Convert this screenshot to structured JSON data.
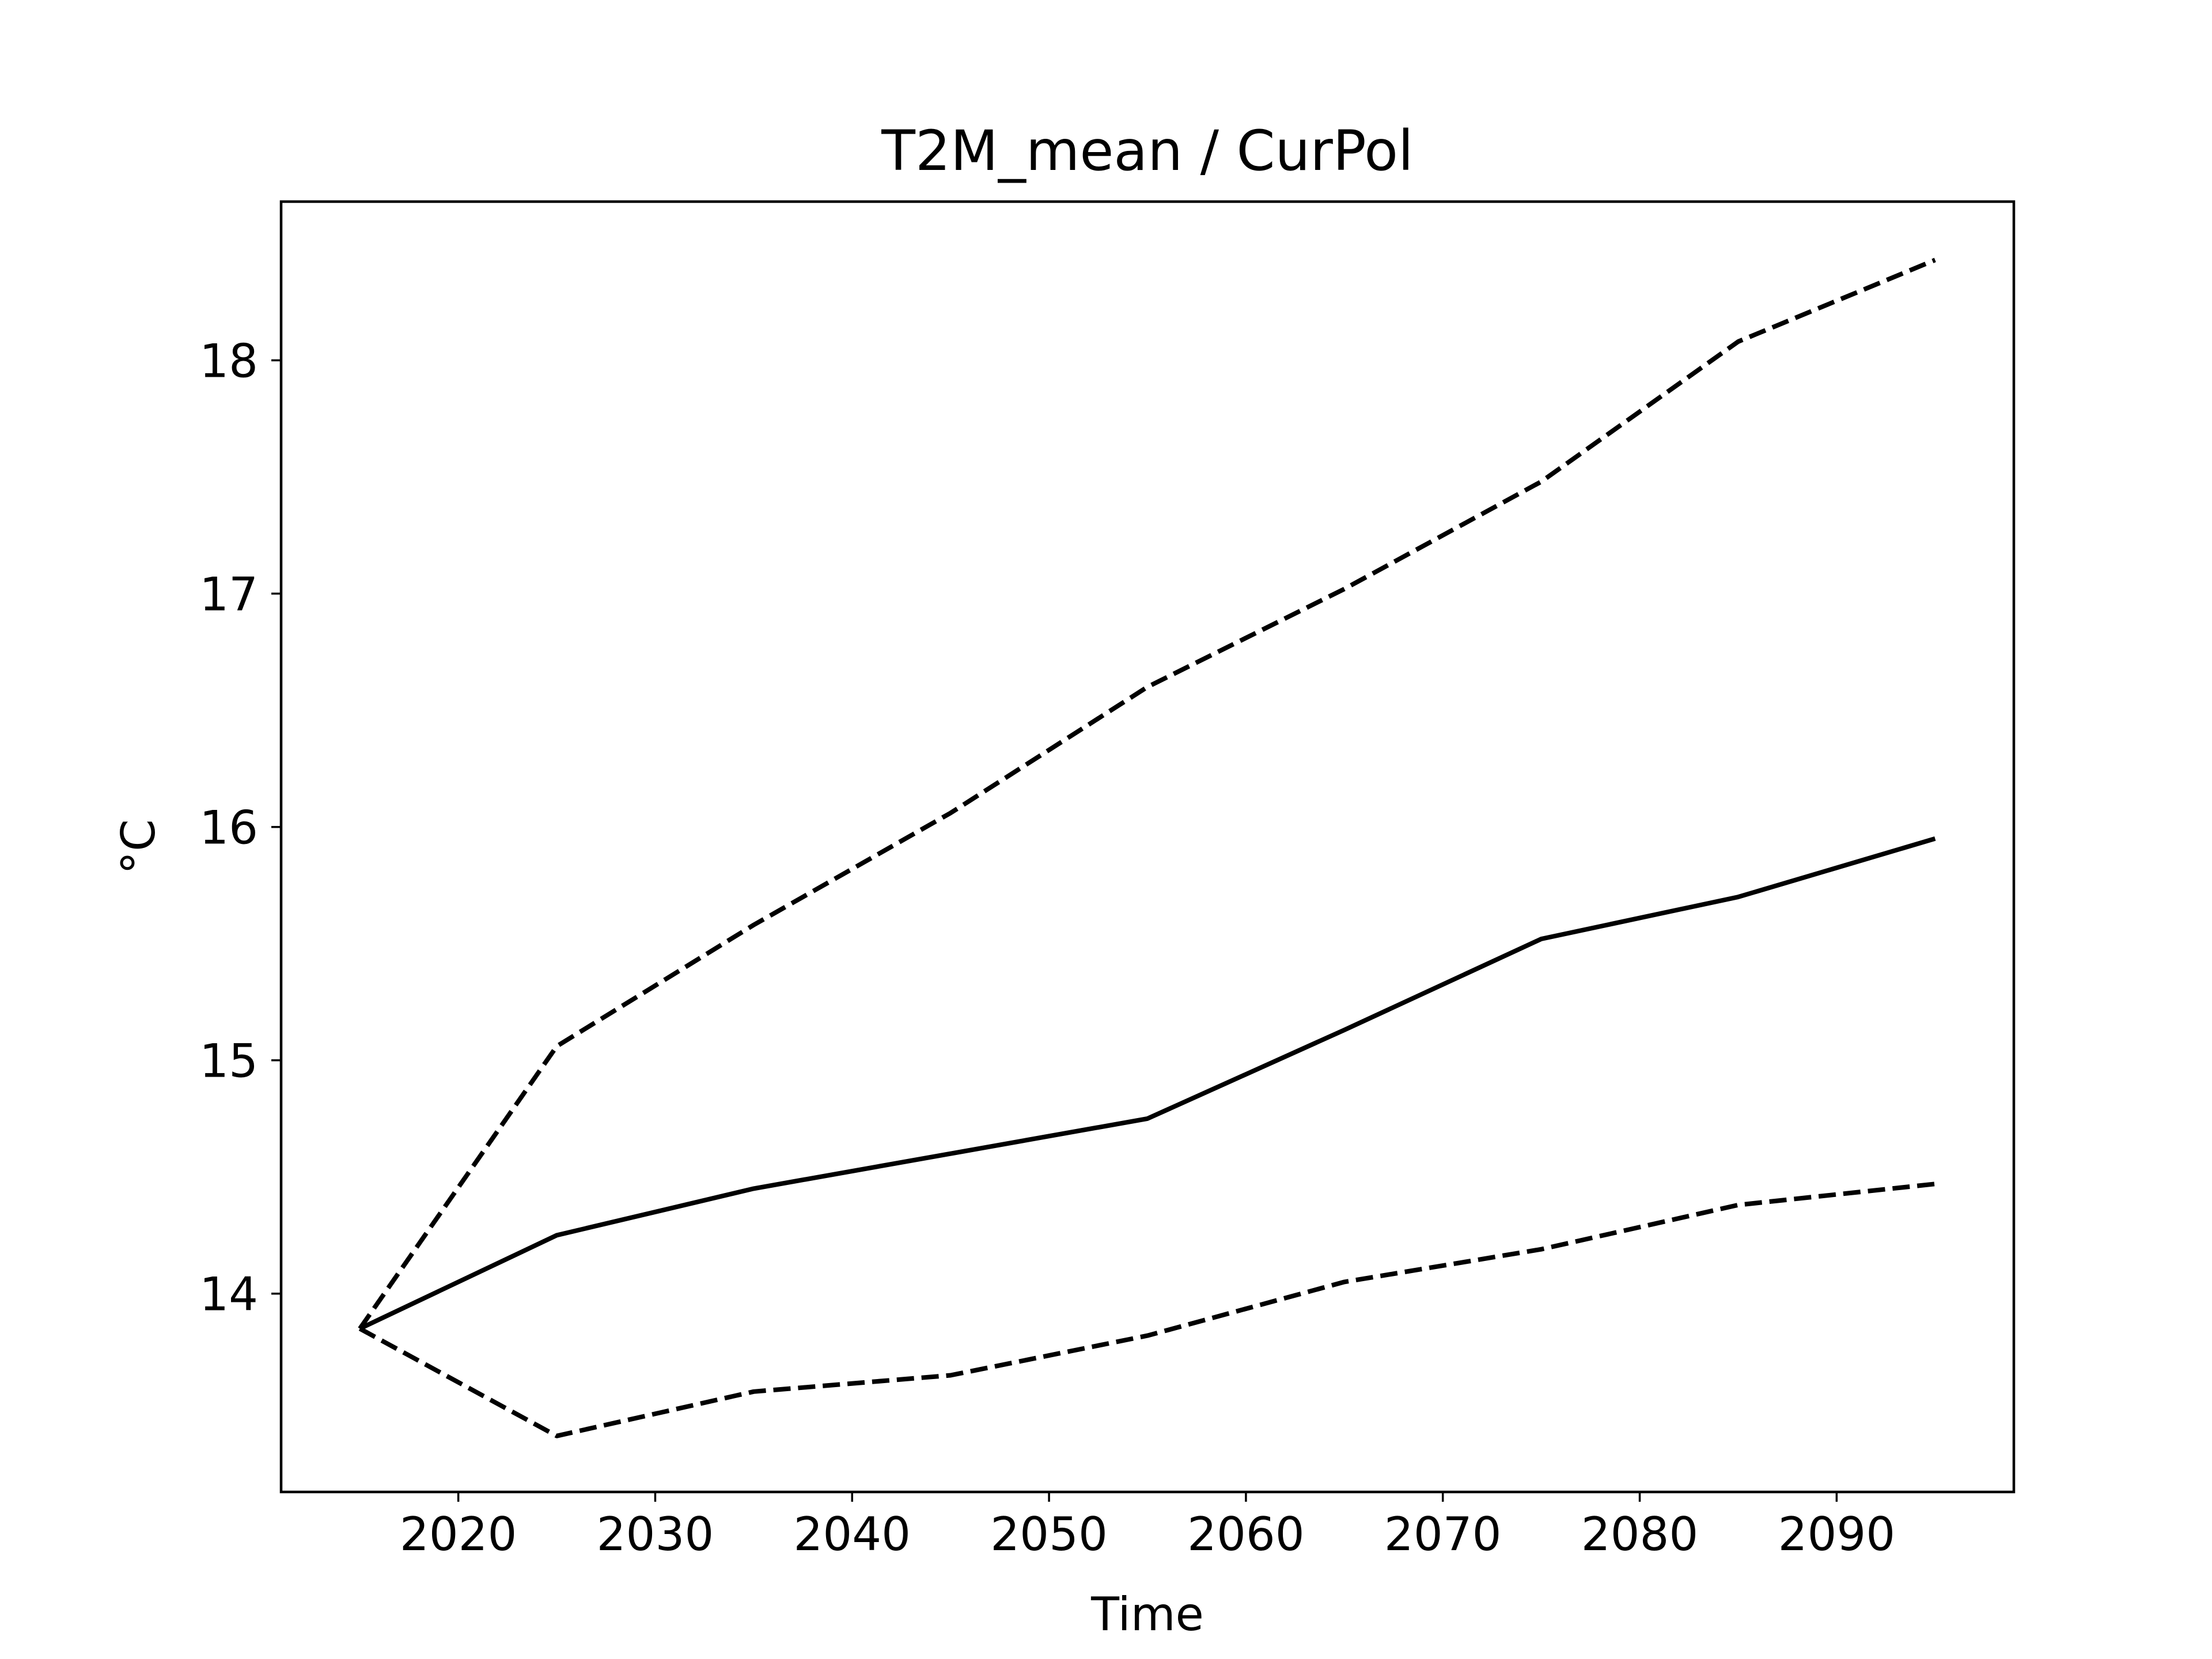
{
  "chart_data": {
    "type": "line",
    "title": "T2M_mean / CurPol",
    "xlabel": "Time",
    "ylabel": "°C",
    "xlim": [
      2011,
      2099
    ],
    "ylim": [
      13.15,
      18.68
    ],
    "xticks": [
      2020,
      2030,
      2040,
      2050,
      2060,
      2070,
      2080,
      2090
    ],
    "yticks": [
      14,
      15,
      16,
      17,
      18
    ],
    "grid": false,
    "legend": "none",
    "x": [
      2015,
      2025,
      2035,
      2045,
      2055,
      2065,
      2075,
      2085,
      2095
    ],
    "series": [
      {
        "style": "solid",
        "color": "#000000",
        "values": [
          13.85,
          14.25,
          14.45,
          14.6,
          14.75,
          15.13,
          15.52,
          15.7,
          15.95
        ]
      },
      {
        "style": "dashed",
        "color": "#000000",
        "values": [
          13.85,
          15.06,
          15.58,
          16.06,
          16.6,
          17.02,
          17.48,
          18.08,
          18.43
        ]
      },
      {
        "style": "dashed",
        "color": "#000000",
        "values": [
          13.85,
          13.39,
          13.58,
          13.65,
          13.82,
          14.05,
          14.19,
          14.38,
          14.47
        ]
      }
    ]
  }
}
